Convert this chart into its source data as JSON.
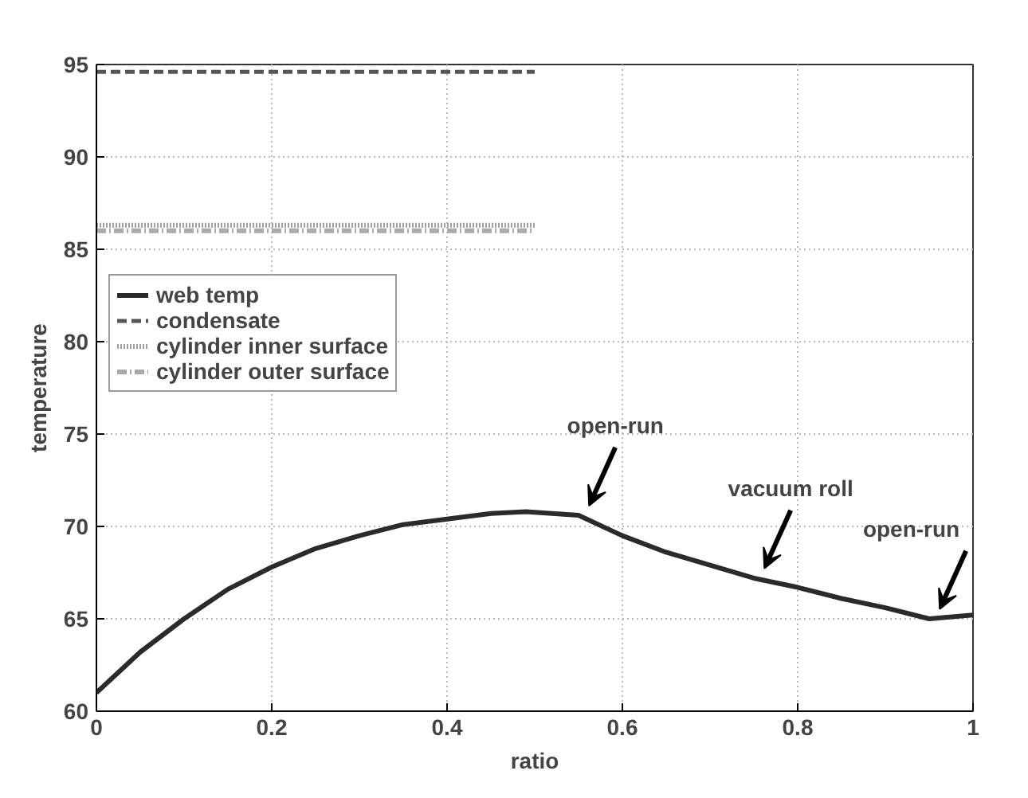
{
  "chart_data": {
    "type": "line",
    "xlabel": "ratio",
    "ylabel": "temperature",
    "xlim": [
      0,
      1
    ],
    "ylim": [
      60,
      95
    ],
    "xticks": [
      0,
      0.2,
      0.4,
      0.6,
      0.8,
      1
    ],
    "yticks": [
      60,
      65,
      70,
      75,
      80,
      85,
      90,
      95
    ],
    "grid": true,
    "legend": "top left",
    "series": [
      {
        "name": "web temp",
        "color": "#2b2b2b",
        "line_style": "solid",
        "x": [
          0,
          0.05,
          0.1,
          0.15,
          0.2,
          0.25,
          0.3,
          0.35,
          0.4,
          0.45,
          0.49,
          0.55,
          0.6,
          0.65,
          0.7,
          0.75,
          0.8,
          0.85,
          0.9,
          0.95,
          1
        ],
        "values": [
          61,
          63.2,
          65,
          66.6,
          67.8,
          68.8,
          69.5,
          70.1,
          70.4,
          70.7,
          70.8,
          70.6,
          69.5,
          68.6,
          67.9,
          67.2,
          66.7,
          66.1,
          65.6,
          65.0,
          65.2
        ]
      },
      {
        "name": "condensate",
        "color": "#555555",
        "line_style": "dashed",
        "x": [
          0,
          0.5
        ],
        "values": [
          94.6,
          94.6
        ]
      },
      {
        "name": "cylinder inner surface",
        "color": "#a0a0a0",
        "line_style": "dotted",
        "x": [
          0,
          0.5
        ],
        "values": [
          86.3,
          86.3
        ]
      },
      {
        "name": "cylinder outer surface",
        "color": "#aaaaaa",
        "line_style": "dashdot",
        "x": [
          0,
          0.5
        ],
        "values": [
          86.0,
          86.0
        ]
      }
    ],
    "annotations": [
      {
        "text": "open-run",
        "x": 0.55,
        "y": 70.6
      },
      {
        "text": "vacuum roll",
        "x": 0.75,
        "y": 67.2
      },
      {
        "text": "open-run",
        "x": 0.95,
        "y": 65.0
      }
    ]
  }
}
